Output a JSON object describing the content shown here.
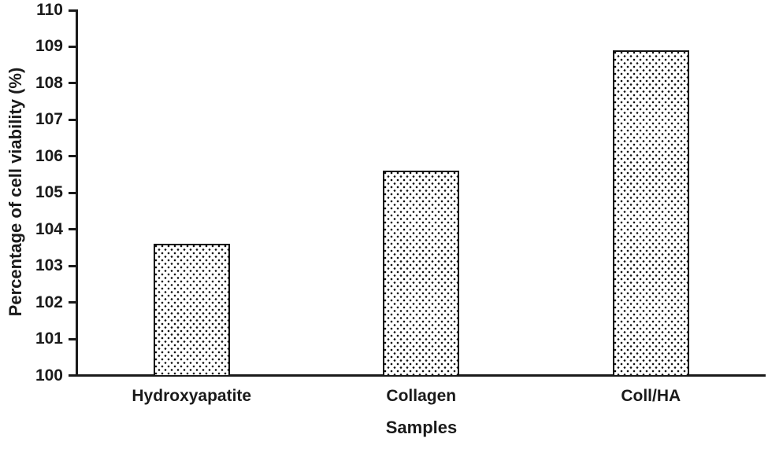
{
  "chart_data": {
    "type": "bar",
    "title": "",
    "categories": [
      "Hydroxyapatite",
      "Collagen",
      "Coll/HA"
    ],
    "values": [
      103.6,
      105.6,
      108.9
    ],
    "series": [
      {
        "name": "Percentage of cell viability",
        "values": [
          103.6,
          105.6,
          108.9
        ]
      }
    ],
    "xlabel": "Samples",
    "ylabel": "Percentage of cell viability (%)",
    "ylim": [
      100,
      110
    ],
    "ytick_step": 1,
    "yticks": [
      100,
      101,
      102,
      103,
      104,
      105,
      106,
      107,
      108,
      109,
      110
    ],
    "grid": false,
    "legend": false,
    "bar_style": "white fill with black dotted stipple pattern, black outline",
    "colors": {
      "axis": "#1a1a1a",
      "text": "#1a1a1a",
      "bar_outline": "#111111",
      "bar_dots": "#111111",
      "background": "#ffffff"
    }
  }
}
